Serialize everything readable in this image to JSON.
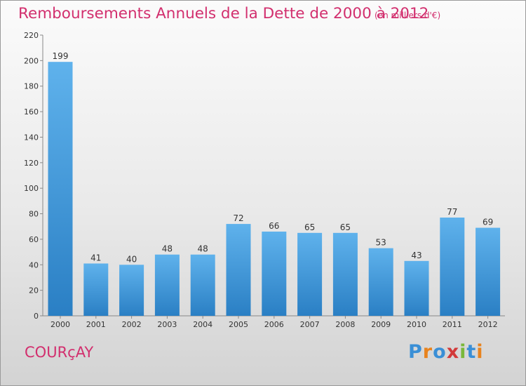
{
  "header": {
    "title": "Remboursements Annuels de la Dette de 2000 à 2012",
    "unit": "(en milliers d'€)"
  },
  "footer": {
    "commune": "COURçAY",
    "logo_text": "Proxiti"
  },
  "colors": {
    "title": "#d22f6e",
    "bar_top": "#5fb2ec",
    "bar_bottom": "#2a7fc4",
    "logo_letters": [
      "#3a8fd6",
      "#e8831e",
      "#3a8fd6",
      "#d23a3a",
      "#7ab83a",
      "#3a8fd6",
      "#e8831e"
    ]
  },
  "chart_data": {
    "type": "bar",
    "title": "Remboursements Annuels de la Dette de 2000 à 2012",
    "categories": [
      "2000",
      "2001",
      "2002",
      "2003",
      "2004",
      "2005",
      "2006",
      "2007",
      "2008",
      "2009",
      "2010",
      "2011",
      "2012"
    ],
    "values": [
      199,
      41,
      40,
      48,
      48,
      72,
      66,
      65,
      65,
      53,
      43,
      77,
      69
    ],
    "ylim": [
      0,
      220
    ],
    "yticks": [
      0,
      20,
      40,
      60,
      80,
      100,
      120,
      140,
      160,
      180,
      200,
      220
    ],
    "xlabel": "",
    "ylabel": "",
    "grid": false,
    "legend": "none"
  }
}
